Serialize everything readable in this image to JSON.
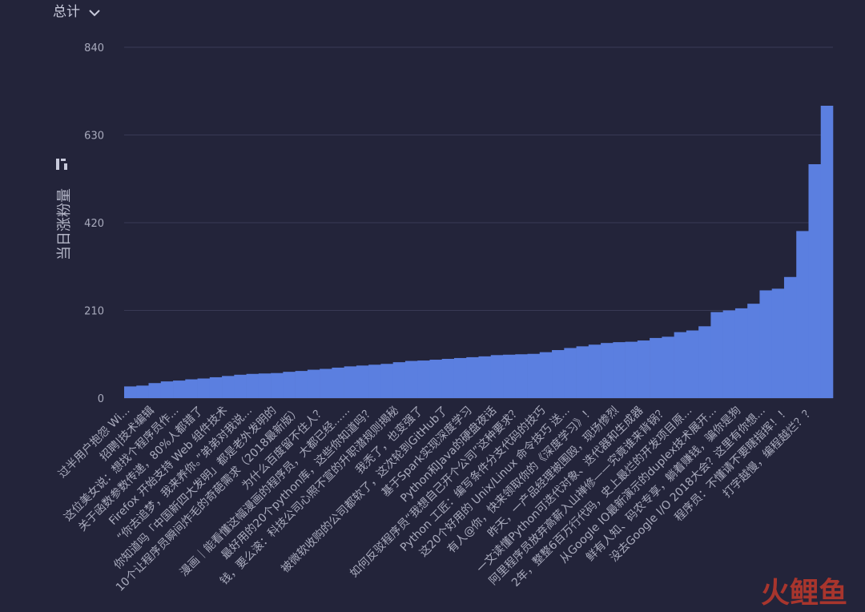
{
  "header": {
    "title": "总计"
  },
  "chart_data": {
    "type": "bar",
    "y_label": "当日涨粉量",
    "color": "#5b7fe0",
    "grid": true,
    "ylim": [
      0,
      840
    ],
    "yticks": [
      0,
      210,
      420,
      630,
      840
    ],
    "categories": [
      "过半用户抱怨 Wi...",
      null,
      "招聘|技术编辑",
      null,
      "这位美女说：想找个程序员作...",
      null,
      "关于函数参数传递，80%人都错了",
      null,
      "Firefox 开始支持 Web 组件技术",
      null,
      "“你去追梦，我来养你。”弟弟对我说...",
      null,
      "你知道吗「中国新四大发明」都是老外发明的",
      null,
      "10个让程序员瞬间炸毛的奇葩需求（2018最新版）",
      null,
      "为什么百度留不住人？",
      null,
      "漫画｜能看懂这幅漫画的程序员，大都已经......",
      null,
      "最好用的20个python库，这些你知道吗？",
      null,
      "钱，要么滚：科技公司心照不宣的升职潜规则揭秘",
      null,
      "我秃了，也变强了",
      null,
      "被微软收购的公司都软了，这次轮到GitHub了",
      null,
      "基于Spark实现深度学习",
      null,
      "Python和Java的硬盘夜话",
      null,
      "如何反驳程序员“我想自己开个公司”这种要求？",
      null,
      "Python 工匠：编写条件分支代码的技巧",
      null,
      "这20个好用的 Unix/Linux 命令技巧 送...",
      null,
      "有人@你，快来领取你的《深度学习》！",
      null,
      "昨天，一产品经理被围殴，现场惨烈",
      null,
      "一文读懂Python可迭代对象、迭代器和生成器",
      null,
      "阿里程序员放弃高薪入山禅修——究竟谁来背锅？",
      null,
      "2年，整整6百万行代码，史上最烂的开发项目原...",
      null,
      "从Google IO最新演示的duplex技术展开...",
      null,
      "鲜有人知、码农专享，躺着赚钱，骗你是狗",
      null,
      "没去Google I/O 2018大会？这里有你想...",
      null,
      "程序员：不懂请不要瞎指挥！！",
      null,
      "打字越慢，编程越烂？？",
      null
    ],
    "values": [
      28,
      30,
      36,
      40,
      42,
      45,
      47,
      50,
      53,
      56,
      58,
      59,
      60,
      63,
      65,
      68,
      70,
      73,
      76,
      78,
      80,
      82,
      86,
      89,
      90,
      92,
      94,
      96,
      98,
      100,
      103,
      104,
      105,
      106,
      110,
      115,
      120,
      124,
      128,
      132,
      134,
      135,
      138,
      144,
      147,
      158,
      162,
      172,
      206,
      210,
      215,
      226,
      258,
      262,
      290,
      400,
      560,
      700
    ]
  },
  "watermark": "火鲤鱼"
}
